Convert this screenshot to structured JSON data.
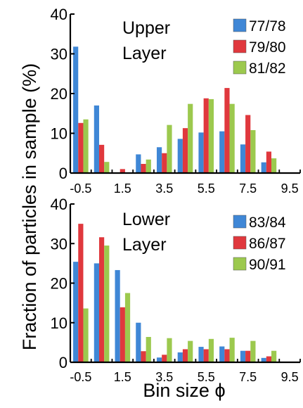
{
  "ylabel": "Fraction of particles in sample (%)",
  "xlabel": "Bin size ϕ",
  "colors": {
    "series1": "#3f87d6",
    "series2": "#e0383d",
    "series3": "#9cc94e"
  },
  "chart_data": [
    {
      "type": "bar",
      "panel": "top",
      "title_lines": [
        "Upper",
        "Layer"
      ],
      "x_tick_labels": [
        "-0.5",
        "1.5",
        "3.5",
        "5.5",
        "7.5",
        "9.5"
      ],
      "y_tick_labels": [
        "0",
        "10",
        "20",
        "30",
        "40"
      ],
      "ylim": [
        0,
        40
      ],
      "categories": [
        "-0.5",
        "0.5",
        "1.5",
        "2.5",
        "3.5",
        "4.5",
        "5.5",
        "6.5",
        "7.5",
        "8.5",
        "9.5"
      ],
      "series": [
        {
          "name": "77/78",
          "values": [
            31.8,
            17.0,
            0.0,
            4.7,
            6.5,
            8.6,
            10.2,
            10.5,
            7.2,
            2.7,
            0.0
          ]
        },
        {
          "name": "79/80",
          "values": [
            12.6,
            7.1,
            1.0,
            2.3,
            5.0,
            11.3,
            18.8,
            21.4,
            14.6,
            5.4,
            0.0
          ]
        },
        {
          "name": "81/82",
          "values": [
            13.5,
            2.8,
            0.0,
            3.4,
            12.1,
            17.4,
            18.6,
            17.4,
            10.8,
            3.7,
            0.0
          ]
        }
      ]
    },
    {
      "type": "bar",
      "panel": "bottom",
      "title_lines": [
        "Lower",
        "Layer"
      ],
      "x_tick_labels": [
        "-0.5",
        "1.5",
        "3.5",
        "5.5",
        "7.5",
        "9.5"
      ],
      "y_tick_labels": [
        "0",
        "10",
        "20",
        "30",
        "40"
      ],
      "ylim": [
        0,
        40
      ],
      "categories": [
        "-0.5",
        "0.5",
        "1.5",
        "2.5",
        "3.5",
        "4.5",
        "5.5",
        "6.5",
        "7.5",
        "8.5",
        "9.5"
      ],
      "series": [
        {
          "name": "83/84",
          "values": [
            25.4,
            25.0,
            23.3,
            10.0,
            1.2,
            2.5,
            3.9,
            4.0,
            2.9,
            1.1,
            0.0
          ]
        },
        {
          "name": "86/87",
          "values": [
            35.0,
            31.6,
            13.9,
            2.8,
            1.9,
            3.3,
            3.3,
            3.3,
            2.9,
            1.5,
            0.0
          ]
        },
        {
          "name": "90/91",
          "values": [
            13.6,
            29.5,
            17.5,
            6.4,
            6.1,
            5.4,
            5.9,
            6.2,
            5.4,
            2.9,
            0.0
          ]
        }
      ]
    }
  ]
}
